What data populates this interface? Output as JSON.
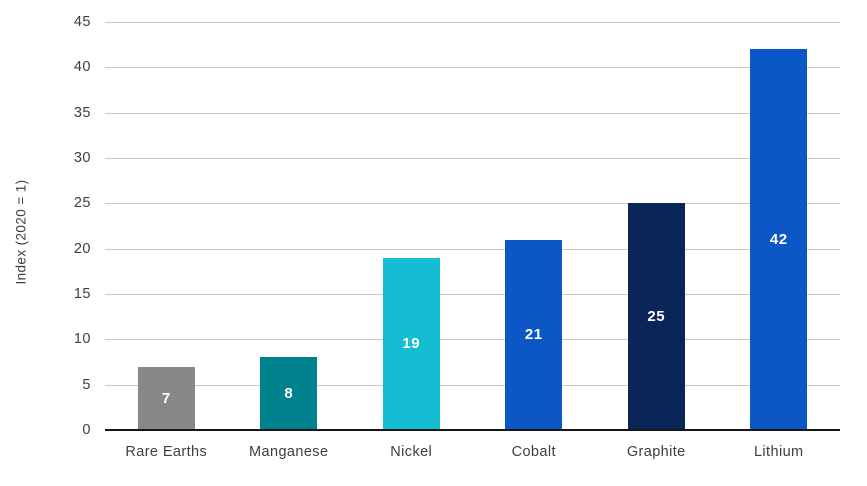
{
  "chart_data": {
    "type": "bar",
    "title": "",
    "xlabel": "",
    "ylabel": "Index (2020 = 1)",
    "categories": [
      "Rare Earths",
      "Manganese",
      "Nickel",
      "Cobalt",
      "Graphite",
      "Lithium"
    ],
    "values": [
      7,
      8,
      19,
      21,
      25,
      42
    ],
    "bar_colors": [
      "#88888b",
      "#00818e",
      "#14bdd1",
      "#0b57c6",
      "#0a2658",
      "#0b57c6"
    ],
    "ylim": [
      0,
      45
    ],
    "yticks": [
      0,
      5,
      10,
      15,
      20,
      25,
      30,
      35,
      40,
      45
    ],
    "grid": "horizontal gridlines at every 5 units, hidden behind bars",
    "legend": "none",
    "value_labels_position": "centered inside bars",
    "colors": {
      "background": "#ffffff",
      "gridline": "#c8c8c8",
      "axis_line": "#15151a",
      "tick_text": "#3d3d46",
      "category_text": "#3d3d46",
      "axis_title_text": "#3d3d46",
      "value_label_text": "#ffffff"
    }
  }
}
